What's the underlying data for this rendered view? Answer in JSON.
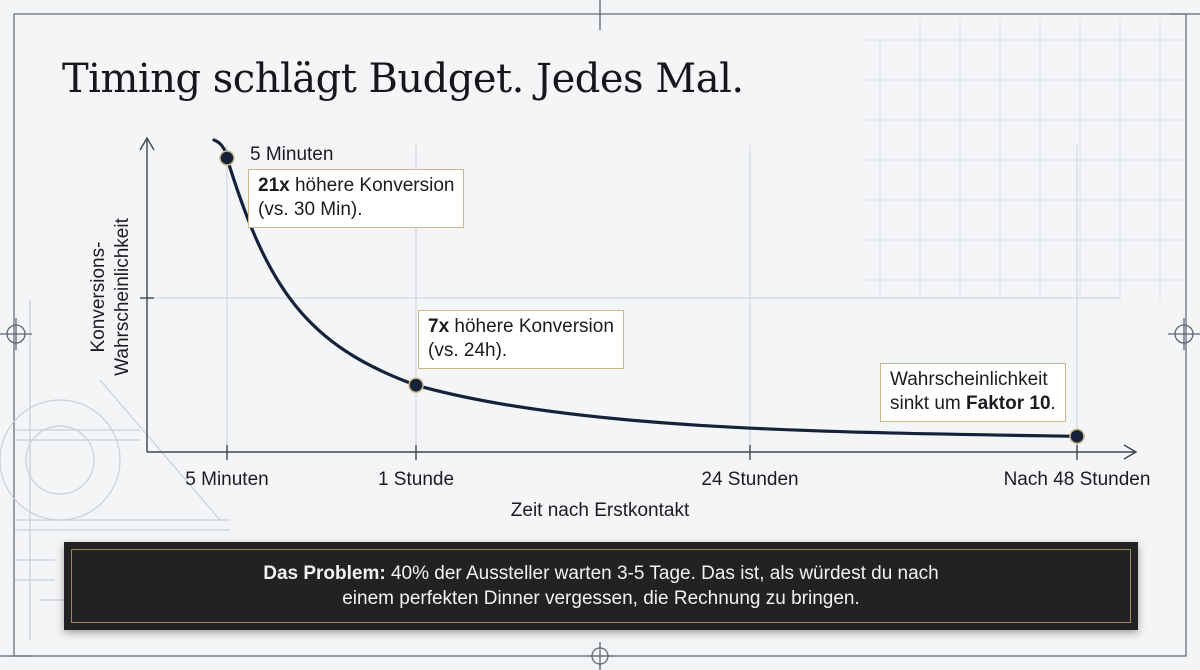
{
  "title": "Timing schlägt Budget. Jedes Mal.",
  "chart_data": {
    "type": "line",
    "xlabel": "Zeit nach Erstkontakt",
    "ylabel": [
      "Konversions-",
      "Wahrscheinlichkeit"
    ],
    "x_categories": [
      "5 Minuten",
      "1 Stunde",
      "24 Stunden",
      "Nach 48 Stunden"
    ],
    "series": [
      {
        "points": [
          {
            "x": "5 Minuten",
            "y": 100
          },
          {
            "x": "1 Stunde",
            "y": 20
          },
          {
            "x": "Nach 48 Stunden",
            "y": 2
          }
        ]
      }
    ],
    "line_color": "#15223a",
    "marker_color": "#15223a",
    "grid": true
  },
  "annotations": {
    "five_min_label": "5 Minuten",
    "five_min_bold": "21x",
    "five_min_line1": " höhere Konversion",
    "five_min_line2": "(vs. 30 Min).",
    "one_hour_bold": "7x",
    "one_hour_line1": " höhere Konversion",
    "one_hour_line2": "(vs. 24h).",
    "end_line1": "Wahrscheinlichkeit",
    "end_line2_pre": "sinkt um ",
    "end_line2_bold": "Faktor 10",
    "end_line2_post": "."
  },
  "problem": {
    "bold": "Das Problem:",
    "line1": " 40% der Aussteller warten 3-5 Tage. Das ist, als würdest du nach",
    "line2": "einem perfekten Dinner vergessen, die Rechnung zu bringen."
  },
  "colors": {
    "background": "#f3f5f7",
    "accent_border": "#c9b98a",
    "banner_bg": "#222222"
  }
}
